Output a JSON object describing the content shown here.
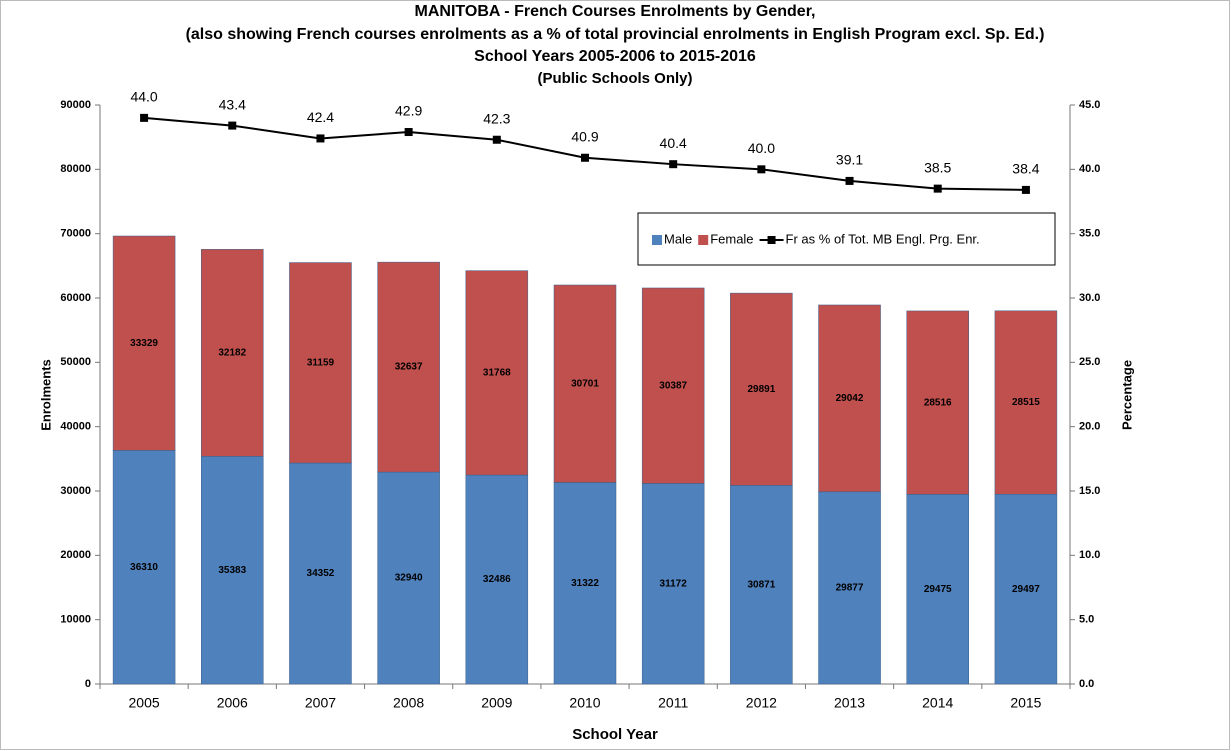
{
  "chart_data": {
    "type": "bar",
    "stacked": true,
    "title": "MANITOBA  -   French Courses Enrolments by Gender,",
    "subtitle": [
      "(also showing French courses enrolments as a % of total provincial enrolments in English Program excl. Sp. Ed.)",
      "School  Years  2005-2006  to  2015-2016",
      "(Public Schools Only)"
    ],
    "xlabel": "School Year",
    "ylabel": "Enrolments",
    "y2label": "Percentage",
    "categories": [
      "2005",
      "2006",
      "2007",
      "2008",
      "2009",
      "2010",
      "2011",
      "2012",
      "2013",
      "2014",
      "2015"
    ],
    "series": [
      {
        "name": "Male",
        "color": "#4f81bd",
        "values": [
          36310,
          35383,
          34352,
          32940,
          32486,
          31322,
          31172,
          30871,
          29877,
          29475,
          29497
        ]
      },
      {
        "name": "Female",
        "color": "#c0504d",
        "values": [
          33329,
          32182,
          31159,
          32637,
          31768,
          30701,
          30387,
          29891,
          29042,
          28516,
          28515
        ]
      },
      {
        "name": "Fr as % of  Tot. MB Engl. Prg. Enr.",
        "color": "#000000",
        "type": "line",
        "axis": "y2",
        "values": [
          44.0,
          43.4,
          42.4,
          42.9,
          42.3,
          40.9,
          40.4,
          40.0,
          39.1,
          38.5,
          38.4
        ],
        "value_labels": [
          "44.0",
          "43.4",
          "42.4",
          "42.9",
          "42.3",
          "40.9",
          "40.4",
          "40.0",
          "39.1",
          "38.5",
          "38.4"
        ]
      }
    ],
    "ylim": [
      0,
      90000
    ],
    "yticks": [
      0,
      10000,
      20000,
      30000,
      40000,
      50000,
      60000,
      70000,
      80000,
      90000
    ],
    "y2lim": [
      0,
      45
    ],
    "y2ticks": [
      {
        "value": 0,
        "label": "0.0"
      },
      {
        "value": 5,
        "label": "5.0"
      },
      {
        "value": 10,
        "label": "10.0"
      },
      {
        "value": 15,
        "label": "15.0"
      },
      {
        "value": 20,
        "label": "20.0"
      },
      {
        "value": 25,
        "label": "25.0"
      },
      {
        "value": 30,
        "label": "30.0"
      },
      {
        "value": 35,
        "label": "35.0"
      },
      {
        "value": 40,
        "label": "40.0"
      },
      {
        "value": 45,
        "label": "45.0"
      }
    ],
    "legend": "upper right",
    "grid": false
  }
}
